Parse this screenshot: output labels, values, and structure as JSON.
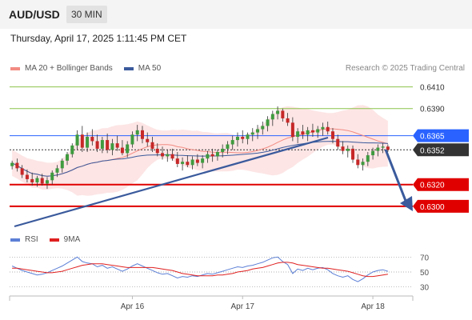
{
  "header": {
    "symbol": "AUD/USD",
    "timeframe": "30 MIN",
    "datetime": "Thursday, April 17, 2025 1:11:45 PM CET"
  },
  "legend": {
    "items": [
      {
        "label": "MA 20 + Bollinger Bands",
        "color": "#f28b82"
      },
      {
        "label": "MA 50",
        "color": "#3a5a9c"
      }
    ],
    "copyright": "Research © 2025 Trading Central"
  },
  "rsi_legend": {
    "items": [
      {
        "label": "RSI",
        "color": "#5b7fd6"
      },
      {
        "label": "9MA",
        "color": "#e02020"
      }
    ]
  },
  "chart_data": {
    "type": "candlestick",
    "price_axis": {
      "min": 0.628,
      "max": 0.642
    },
    "levels": [
      {
        "value": 0.641,
        "label": "0.6410",
        "kind": "target",
        "color": "#8bc34a"
      },
      {
        "value": 0.639,
        "label": "0.6390",
        "kind": "target",
        "color": "#8bc34a"
      },
      {
        "value": 0.6365,
        "label": "0.6365",
        "kind": "pivot",
        "color": "#2962ff"
      },
      {
        "value": 0.6352,
        "label": "0.6352",
        "kind": "last",
        "color": "#333333"
      },
      {
        "value": 0.632,
        "label": "0.6320",
        "kind": "support",
        "color": "#e00000"
      },
      {
        "value": 0.63,
        "label": "0.6300",
        "kind": "support",
        "color": "#e00000"
      }
    ],
    "candles": [
      [
        0.6337,
        0.6342,
        0.6334,
        0.634
      ],
      [
        0.634,
        0.6344,
        0.6332,
        0.6335
      ],
      [
        0.6335,
        0.6338,
        0.6326,
        0.6329
      ],
      [
        0.6329,
        0.6334,
        0.6322,
        0.6325
      ],
      [
        0.6325,
        0.6331,
        0.6319,
        0.6322
      ],
      [
        0.6322,
        0.6328,
        0.6318,
        0.6326
      ],
      [
        0.6326,
        0.633,
        0.6319,
        0.6321
      ],
      [
        0.6321,
        0.6327,
        0.6316,
        0.6324
      ],
      [
        0.6324,
        0.6333,
        0.632,
        0.6331
      ],
      [
        0.6331,
        0.6338,
        0.6327,
        0.6335
      ],
      [
        0.6335,
        0.6344,
        0.6331,
        0.6342
      ],
      [
        0.6342,
        0.635,
        0.6338,
        0.6348
      ],
      [
        0.6348,
        0.6358,
        0.6345,
        0.6356
      ],
      [
        0.6356,
        0.637,
        0.6352,
        0.6366
      ],
      [
        0.6366,
        0.6374,
        0.635,
        0.6354
      ],
      [
        0.6354,
        0.6368,
        0.635,
        0.6364
      ],
      [
        0.6364,
        0.6371,
        0.6356,
        0.636
      ],
      [
        0.636,
        0.6366,
        0.635,
        0.6353
      ],
      [
        0.6353,
        0.6364,
        0.6349,
        0.6361
      ],
      [
        0.6361,
        0.6367,
        0.6349,
        0.6352
      ],
      [
        0.6352,
        0.6362,
        0.6347,
        0.6358
      ],
      [
        0.6358,
        0.6365,
        0.6351,
        0.6354
      ],
      [
        0.6354,
        0.6361,
        0.6347,
        0.6349
      ],
      [
        0.6349,
        0.636,
        0.6345,
        0.6357
      ],
      [
        0.6357,
        0.6369,
        0.6354,
        0.6366
      ],
      [
        0.6366,
        0.6375,
        0.636,
        0.637
      ],
      [
        0.637,
        0.6374,
        0.6358,
        0.6362
      ],
      [
        0.6362,
        0.6368,
        0.6355,
        0.6359
      ],
      [
        0.6359,
        0.6364,
        0.635,
        0.6353
      ],
      [
        0.6353,
        0.6358,
        0.6346,
        0.6349
      ],
      [
        0.6349,
        0.6355,
        0.6343,
        0.6346
      ],
      [
        0.6346,
        0.6352,
        0.6341,
        0.6348
      ],
      [
        0.6348,
        0.6353,
        0.6342,
        0.6344
      ],
      [
        0.6344,
        0.635,
        0.6336,
        0.6339
      ],
      [
        0.6339,
        0.6345,
        0.6333,
        0.6341
      ],
      [
        0.6341,
        0.6347,
        0.6336,
        0.6338
      ],
      [
        0.6338,
        0.6346,
        0.6334,
        0.6343
      ],
      [
        0.6343,
        0.6348,
        0.6337,
        0.634
      ],
      [
        0.634,
        0.6347,
        0.6335,
        0.6344
      ],
      [
        0.6344,
        0.6351,
        0.634,
        0.6348
      ],
      [
        0.6348,
        0.6353,
        0.6341,
        0.6346
      ],
      [
        0.6346,
        0.6352,
        0.6342,
        0.635
      ],
      [
        0.635,
        0.6357,
        0.6345,
        0.6353
      ],
      [
        0.6353,
        0.636,
        0.6348,
        0.6357
      ],
      [
        0.6357,
        0.6365,
        0.6352,
        0.6361
      ],
      [
        0.6361,
        0.6368,
        0.6355,
        0.6364
      ],
      [
        0.6364,
        0.637,
        0.6358,
        0.6362
      ],
      [
        0.6362,
        0.6368,
        0.6357,
        0.6366
      ],
      [
        0.6366,
        0.6372,
        0.636,
        0.6368
      ],
      [
        0.6368,
        0.6375,
        0.6362,
        0.6371
      ],
      [
        0.6371,
        0.6378,
        0.6366,
        0.6374
      ],
      [
        0.6374,
        0.6383,
        0.6369,
        0.638
      ],
      [
        0.638,
        0.6388,
        0.6374,
        0.6385
      ],
      [
        0.6385,
        0.6392,
        0.638,
        0.6388
      ],
      [
        0.6388,
        0.639,
        0.6378,
        0.6381
      ],
      [
        0.6381,
        0.6386,
        0.6374,
        0.6377
      ],
      [
        0.6377,
        0.6382,
        0.636,
        0.6364
      ],
      [
        0.6364,
        0.6372,
        0.6358,
        0.6369
      ],
      [
        0.6369,
        0.6375,
        0.6362,
        0.6366
      ],
      [
        0.6366,
        0.6373,
        0.636,
        0.637
      ],
      [
        0.637,
        0.6376,
        0.6364,
        0.6368
      ],
      [
        0.6368,
        0.6374,
        0.6363,
        0.6371
      ],
      [
        0.6371,
        0.6377,
        0.6365,
        0.6373
      ],
      [
        0.6373,
        0.6378,
        0.6366,
        0.6369
      ],
      [
        0.6369,
        0.6372,
        0.6358,
        0.6362
      ],
      [
        0.6362,
        0.6366,
        0.6352,
        0.6355
      ],
      [
        0.6355,
        0.636,
        0.6348,
        0.6351
      ],
      [
        0.6351,
        0.6356,
        0.6345,
        0.6353
      ],
      [
        0.6353,
        0.6356,
        0.634,
        0.6343
      ],
      [
        0.6343,
        0.6348,
        0.6335,
        0.6338
      ],
      [
        0.6338,
        0.6344,
        0.6333,
        0.6341
      ],
      [
        0.6341,
        0.635,
        0.6337,
        0.6347
      ],
      [
        0.6347,
        0.6354,
        0.6343,
        0.6351
      ],
      [
        0.6351,
        0.6357,
        0.6346,
        0.6354
      ],
      [
        0.6354,
        0.6358,
        0.6349,
        0.6355
      ],
      [
        0.6355,
        0.6357,
        0.635,
        0.6352
      ]
    ]
  },
  "rsi_data": {
    "axis": {
      "min": 20,
      "max": 80
    },
    "levels": [
      {
        "value": 70,
        "label": "70"
      },
      {
        "value": 50,
        "label": "50"
      },
      {
        "value": 30,
        "label": "30"
      }
    ],
    "rsi": [
      58,
      55,
      52,
      50,
      48,
      46,
      47,
      49,
      52,
      55,
      58,
      62,
      66,
      70,
      64,
      62,
      61,
      57,
      59,
      55,
      57,
      54,
      51,
      54,
      58,
      61,
      58,
      55,
      52,
      49,
      47,
      48,
      45,
      42,
      44,
      43,
      45,
      44,
      46,
      48,
      47,
      49,
      51,
      53,
      55,
      57,
      56,
      58,
      59,
      61,
      63,
      66,
      69,
      70,
      64,
      60,
      48,
      54,
      52,
      55,
      53,
      55,
      56,
      53,
      48,
      45,
      43,
      45,
      40,
      37,
      41,
      46,
      50,
      52,
      53,
      51
    ],
    "ma9": [
      55,
      55,
      54,
      53,
      52,
      51,
      50,
      49,
      49,
      50,
      51,
      53,
      55,
      57,
      59,
      60,
      61,
      61,
      61,
      60,
      59,
      58,
      57,
      56,
      56,
      56,
      56,
      56,
      56,
      55,
      54,
      53,
      52,
      50,
      48,
      47,
      46,
      45,
      45,
      45,
      45,
      46,
      46,
      47,
      48,
      50,
      51,
      52,
      54,
      55,
      56,
      58,
      60,
      62,
      63,
      63,
      62,
      60,
      59,
      58,
      57,
      56,
      55,
      55,
      54,
      53,
      52,
      51,
      49,
      47,
      45,
      44,
      44,
      45,
      46,
      47
    ]
  },
  "x_axis": {
    "ticks": [
      {
        "index": 24,
        "label": "Apr 16"
      },
      {
        "index": 46,
        "label": "Apr 17"
      },
      {
        "index": 72,
        "label": "Apr 18"
      }
    ]
  }
}
